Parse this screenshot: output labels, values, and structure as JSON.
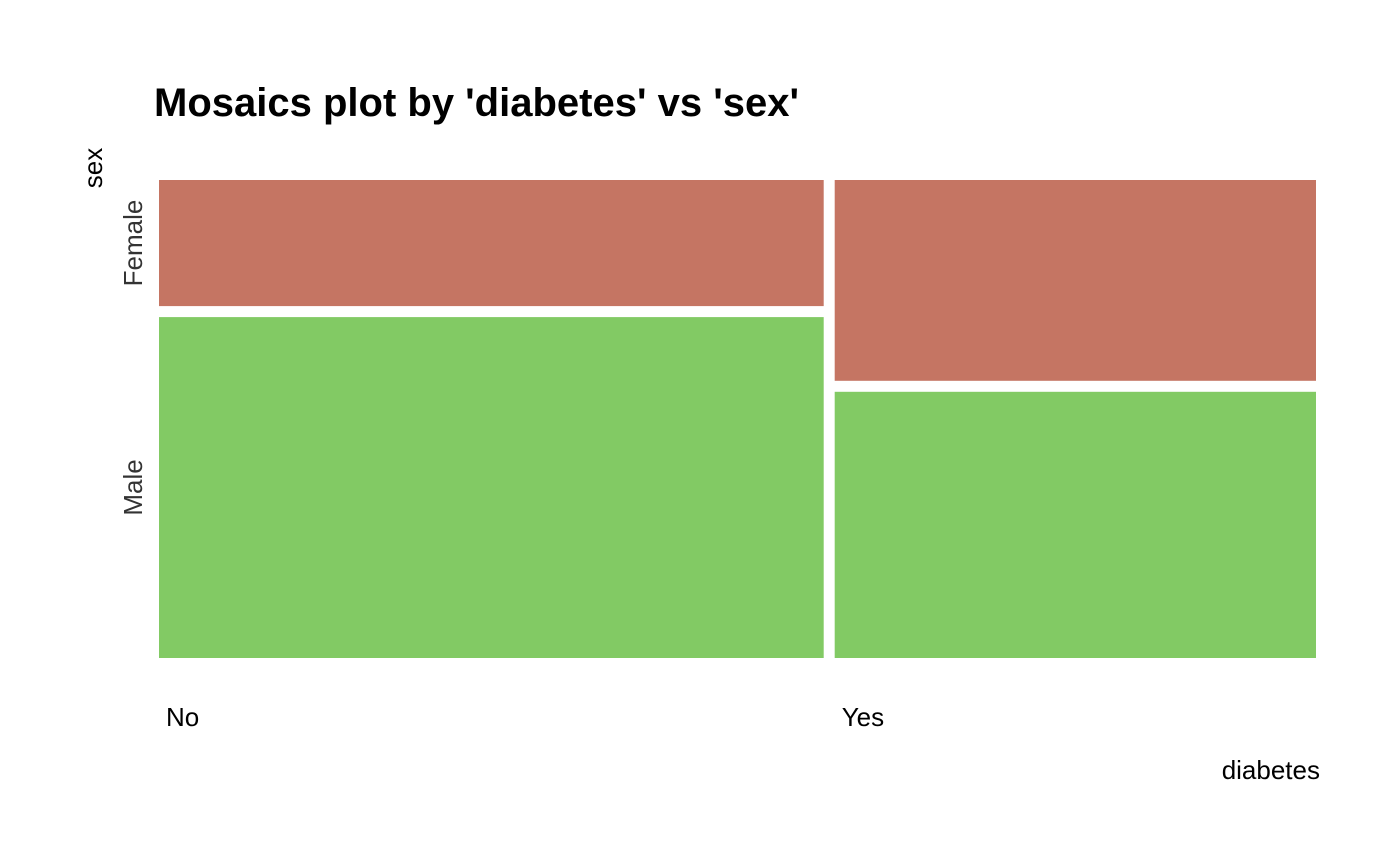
{
  "chart_data": {
    "type": "mosaic",
    "title": "Mosaics plot by 'diabetes' vs 'sex'",
    "xlabel": "diabetes",
    "ylabel": "sex",
    "x_categories": [
      "No",
      "Yes"
    ],
    "x_proportions": [
      0.58,
      0.42
    ],
    "y_categories": [
      "Female",
      "Male"
    ],
    "conditional_proportions": {
      "No": {
        "Female": 0.27,
        "Male": 0.73
      },
      "Yes": {
        "Female": 0.43,
        "Male": 0.57
      }
    },
    "colors": {
      "Female": "#c57563",
      "Male": "#82ca64"
    },
    "grid": false,
    "legend": "none"
  }
}
